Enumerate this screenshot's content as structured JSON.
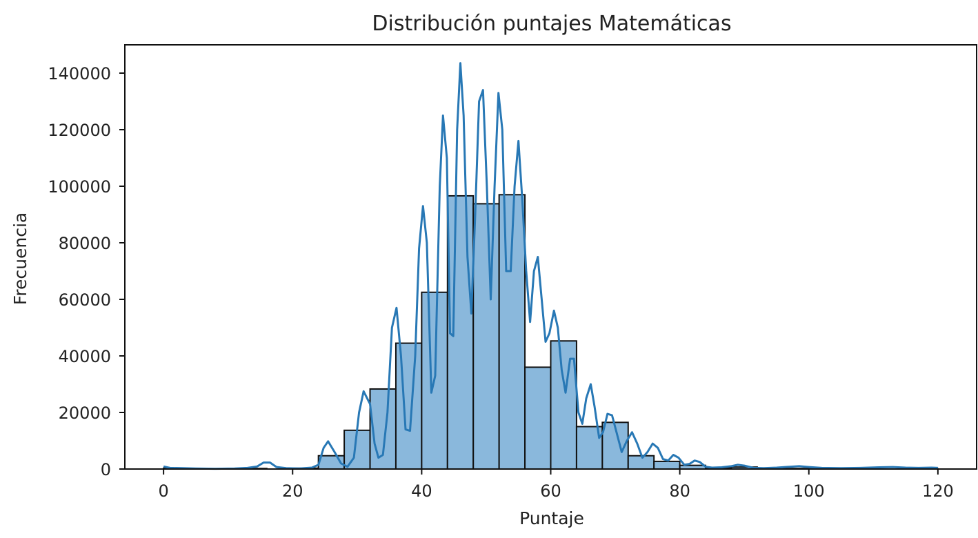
{
  "chart_data": {
    "type": "bar",
    "title": "Distribución puntajes Matemáticas",
    "xlabel": "Puntaje",
    "ylabel": "Frecuencia",
    "xlim": [
      -6,
      126
    ],
    "ylim": [
      0,
      150000
    ],
    "xticks": [
      0,
      20,
      40,
      60,
      80,
      100,
      120
    ],
    "yticks": [
      0,
      20000,
      40000,
      60000,
      80000,
      100000,
      120000,
      140000
    ],
    "grid": false,
    "bar_color": "#8ab8dc",
    "edge_color": "#111111",
    "kde_color": "#2878b5",
    "bins": [
      {
        "start": 0,
        "end": 4,
        "value": 300
      },
      {
        "start": 4,
        "end": 8,
        "value": 0
      },
      {
        "start": 8,
        "end": 12,
        "value": 0
      },
      {
        "start": 12,
        "end": 16,
        "value": 200
      },
      {
        "start": 16,
        "end": 20,
        "value": 0
      },
      {
        "start": 20,
        "end": 24,
        "value": 300
      },
      {
        "start": 24,
        "end": 28,
        "value": 4700
      },
      {
        "start": 28,
        "end": 32,
        "value": 13700
      },
      {
        "start": 32,
        "end": 36,
        "value": 28300
      },
      {
        "start": 36,
        "end": 40,
        "value": 44500
      },
      {
        "start": 40,
        "end": 44,
        "value": 62500
      },
      {
        "start": 44,
        "end": 48,
        "value": 96600
      },
      {
        "start": 48,
        "end": 52,
        "value": 93800
      },
      {
        "start": 52,
        "end": 56,
        "value": 97000
      },
      {
        "start": 56,
        "end": 60,
        "value": 36000
      },
      {
        "start": 60,
        "end": 64,
        "value": 45300
      },
      {
        "start": 64,
        "end": 68,
        "value": 15000
      },
      {
        "start": 68,
        "end": 72,
        "value": 16500
      },
      {
        "start": 72,
        "end": 76,
        "value": 4700
      },
      {
        "start": 76,
        "end": 80,
        "value": 2700
      },
      {
        "start": 80,
        "end": 84,
        "value": 1300
      },
      {
        "start": 84,
        "end": 88,
        "value": 400
      },
      {
        "start": 88,
        "end": 92,
        "value": 700
      },
      {
        "start": 92,
        "end": 96,
        "value": 0
      },
      {
        "start": 96,
        "end": 100,
        "value": 200
      },
      {
        "start": 100,
        "end": 104,
        "value": 100
      },
      {
        "start": 104,
        "end": 108,
        "value": 0
      },
      {
        "start": 108,
        "end": 112,
        "value": 0
      },
      {
        "start": 112,
        "end": 116,
        "value": 0
      },
      {
        "start": 116,
        "end": 120,
        "value": 100
      }
    ],
    "kde": [
      [
        0,
        900
      ],
      [
        1,
        400
      ],
      [
        3,
        300
      ],
      [
        5,
        200
      ],
      [
        8,
        100
      ],
      [
        11,
        200
      ],
      [
        13,
        400
      ],
      [
        14.5,
        900
      ],
      [
        15.5,
        2300
      ],
      [
        16.5,
        2300
      ],
      [
        17.5,
        700
      ],
      [
        19,
        300
      ],
      [
        21,
        200
      ],
      [
        23,
        500
      ],
      [
        24,
        1500
      ],
      [
        24.8,
        7500
      ],
      [
        25.5,
        9800
      ],
      [
        26.5,
        6000
      ],
      [
        27.5,
        2000
      ],
      [
        28.5,
        800
      ],
      [
        29.5,
        4000
      ],
      [
        30.3,
        20000
      ],
      [
        31,
        27500
      ],
      [
        32,
        23000
      ],
      [
        32.7,
        9000
      ],
      [
        33.3,
        4000
      ],
      [
        34,
        5000
      ],
      [
        34.7,
        20000
      ],
      [
        35.4,
        50000
      ],
      [
        36.1,
        57000
      ],
      [
        36.8,
        40000
      ],
      [
        37.5,
        14000
      ],
      [
        38.2,
        13500
      ],
      [
        39,
        40000
      ],
      [
        39.6,
        78000
      ],
      [
        40.2,
        93000
      ],
      [
        40.8,
        80000
      ],
      [
        41.5,
        27000
      ],
      [
        42.1,
        33000
      ],
      [
        42.8,
        100000
      ],
      [
        43.3,
        125000
      ],
      [
        43.9,
        110000
      ],
      [
        44.4,
        48000
      ],
      [
        44.9,
        47000
      ],
      [
        45.5,
        120000
      ],
      [
        46,
        143500
      ],
      [
        46.5,
        125000
      ],
      [
        47.1,
        75000
      ],
      [
        47.7,
        55000
      ],
      [
        48.3,
        90000
      ],
      [
        48.9,
        130000
      ],
      [
        49.5,
        134000
      ],
      [
        50.1,
        100000
      ],
      [
        50.7,
        60000
      ],
      [
        51.3,
        100000
      ],
      [
        51.9,
        133000
      ],
      [
        52.5,
        120000
      ],
      [
        53.1,
        70000
      ],
      [
        53.8,
        70000
      ],
      [
        54.4,
        100000
      ],
      [
        55,
        116000
      ],
      [
        55.6,
        95000
      ],
      [
        56.2,
        70000
      ],
      [
        56.8,
        52000
      ],
      [
        57.4,
        70000
      ],
      [
        58,
        75000
      ],
      [
        58.6,
        60000
      ],
      [
        59.2,
        45000
      ],
      [
        59.8,
        48000
      ],
      [
        60.5,
        56000
      ],
      [
        61.1,
        50000
      ],
      [
        61.7,
        35000
      ],
      [
        62.3,
        27000
      ],
      [
        63,
        39000
      ],
      [
        63.6,
        39000
      ],
      [
        64.3,
        20000
      ],
      [
        64.9,
        16000
      ],
      [
        65.5,
        25000
      ],
      [
        66.2,
        30000
      ],
      [
        66.8,
        22000
      ],
      [
        67.5,
        11000
      ],
      [
        68.1,
        13000
      ],
      [
        68.8,
        19500
      ],
      [
        69.5,
        19000
      ],
      [
        70.2,
        13000
      ],
      [
        71,
        6000
      ],
      [
        71.8,
        10000
      ],
      [
        72.6,
        13000
      ],
      [
        73.4,
        9000
      ],
      [
        74.2,
        4000
      ],
      [
        75,
        6000
      ],
      [
        75.8,
        9000
      ],
      [
        76.6,
        7500
      ],
      [
        77.4,
        3500
      ],
      [
        78.2,
        3000
      ],
      [
        79,
        5000
      ],
      [
        79.8,
        4000
      ],
      [
        80.7,
        1500
      ],
      [
        81.5,
        1800
      ],
      [
        82.3,
        3000
      ],
      [
        83.1,
        2500
      ],
      [
        84,
        800
      ],
      [
        85,
        500
      ],
      [
        86.5,
        600
      ],
      [
        88,
        1000
      ],
      [
        89,
        1500
      ],
      [
        90,
        1200
      ],
      [
        91.5,
        400
      ],
      [
        93,
        300
      ],
      [
        95,
        500
      ],
      [
        97,
        800
      ],
      [
        98.5,
        1000
      ],
      [
        100,
        700
      ],
      [
        102,
        400
      ],
      [
        105,
        300
      ],
      [
        108,
        400
      ],
      [
        111,
        600
      ],
      [
        113,
        700
      ],
      [
        115,
        500
      ],
      [
        117,
        400
      ],
      [
        119,
        500
      ],
      [
        120,
        400
      ]
    ]
  }
}
